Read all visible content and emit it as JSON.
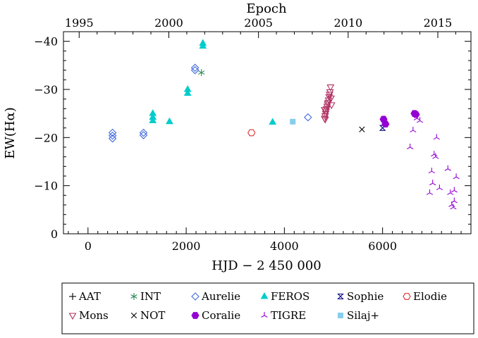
{
  "chart_data": {
    "type": "scatter",
    "title": "",
    "xlabel": "HJD − 2 450 000",
    "ylabel": "EW(Hα)",
    "top_axis_label": "Epoch",
    "xlim": [
      -500,
      7800
    ],
    "ylim": [
      0,
      -42
    ],
    "x_ticks": [
      0,
      2000,
      4000,
      6000
    ],
    "x_tick_labels": [
      "0",
      "2000",
      "4000",
      "6000"
    ],
    "y_ticks": [
      0,
      -10,
      -20,
      -30,
      -40
    ],
    "y_tick_labels": [
      "0",
      "−10",
      "−20",
      "−30",
      "−40"
    ],
    "top_ticks": [
      1995,
      2000,
      2005,
      2010,
      2015
    ],
    "top_tick_labels": [
      "1995",
      "2000",
      "2005",
      "2010",
      "2015"
    ],
    "top_jd_per_year": 365.25,
    "top_year_zero_jd": 1995.0,
    "top_year_zero_x": -180,
    "legend_placement": "below",
    "series": [
      {
        "name": "AAT",
        "symbol": "plus",
        "color": "#000000",
        "points": []
      },
      {
        "name": "INT",
        "symbol": "asterisk",
        "color": "#2e8b57",
        "points": [
          [
            2310,
            -33.5
          ]
        ]
      },
      {
        "name": "Aurelie",
        "symbol": "diamond",
        "color": "#4169e1",
        "points": [
          [
            500,
            -19.8
          ],
          [
            500,
            -20.4
          ],
          [
            500,
            -21.0
          ],
          [
            1130,
            -20.5
          ],
          [
            1130,
            -21.0
          ],
          [
            2180,
            -34.0
          ],
          [
            2180,
            -34.5
          ],
          [
            4480,
            -24.2
          ]
        ]
      },
      {
        "name": "FEROS",
        "symbol": "triangle",
        "color": "#00cccc",
        "points": [
          [
            1320,
            -23.5
          ],
          [
            1320,
            -24.2
          ],
          [
            1320,
            -25.0
          ],
          [
            1660,
            -23.3
          ],
          [
            2030,
            -29.2
          ],
          [
            2030,
            -30.0
          ],
          [
            2340,
            -39.0
          ],
          [
            2340,
            -39.6
          ],
          [
            3760,
            -23.2
          ]
        ]
      },
      {
        "name": "Sophie",
        "symbol": "hourglass",
        "color": "#000080",
        "points": [
          [
            6000,
            -22.0
          ]
        ]
      },
      {
        "name": "Elodie",
        "symbol": "hexagon",
        "color": "#e03030",
        "points": [
          [
            3330,
            -21.0
          ]
        ]
      },
      {
        "name": "Mons",
        "symbol": "tridown",
        "color": "#b03060",
        "points": [
          [
            4820,
            -24.0
          ],
          [
            4830,
            -24.5
          ],
          [
            4840,
            -25.0
          ],
          [
            4850,
            -25.5
          ],
          [
            4860,
            -26.0
          ],
          [
            4870,
            -26.5
          ],
          [
            4880,
            -27.0
          ],
          [
            4890,
            -27.3
          ],
          [
            4900,
            -27.8
          ],
          [
            4910,
            -28.5
          ],
          [
            4920,
            -29.0
          ],
          [
            4930,
            -29.5
          ],
          [
            4940,
            -30.5
          ],
          [
            4950,
            -28.2
          ],
          [
            4960,
            -26.8
          ],
          [
            4820,
            -25.8
          ],
          [
            4830,
            -23.8
          ]
        ]
      },
      {
        "name": "NOT",
        "symbol": "cross",
        "color": "#000000",
        "points": [
          [
            5580,
            -21.7
          ]
        ]
      },
      {
        "name": "Coralie",
        "symbol": "filled-hexagon",
        "color": "#9400d3",
        "points": [
          [
            6020,
            -23.8
          ],
          [
            6060,
            -22.8
          ],
          [
            6650,
            -25.0
          ],
          [
            6680,
            -24.8
          ]
        ]
      },
      {
        "name": "TIGRE",
        "symbol": "tristar",
        "color": "#9400d3",
        "points": [
          [
            6560,
            -18.0
          ],
          [
            6620,
            -21.5
          ],
          [
            6700,
            -24.0
          ],
          [
            6760,
            -23.5
          ],
          [
            6960,
            -8.5
          ],
          [
            7000,
            -13.0
          ],
          [
            7020,
            -10.5
          ],
          [
            7050,
            -16.5
          ],
          [
            7080,
            -16.0
          ],
          [
            7100,
            -20.0
          ],
          [
            7160,
            -9.5
          ],
          [
            7330,
            -13.5
          ],
          [
            7380,
            -8.5
          ],
          [
            7410,
            -6.0
          ],
          [
            7440,
            -5.5
          ],
          [
            7460,
            -9.0
          ],
          [
            7500,
            -11.8
          ],
          [
            7460,
            -6.8
          ]
        ]
      },
      {
        "name": "Silaj+",
        "symbol": "filled-square",
        "color": "#87ceeb",
        "points": [
          [
            4170,
            -23.3
          ]
        ]
      }
    ],
    "legend": [
      [
        "AAT",
        "INT",
        "Aurelie",
        "FEROS",
        "Sophie",
        "Elodie"
      ],
      [
        "Mons",
        "NOT",
        "Coralie",
        "TIGRE",
        "Silaj+"
      ]
    ]
  }
}
